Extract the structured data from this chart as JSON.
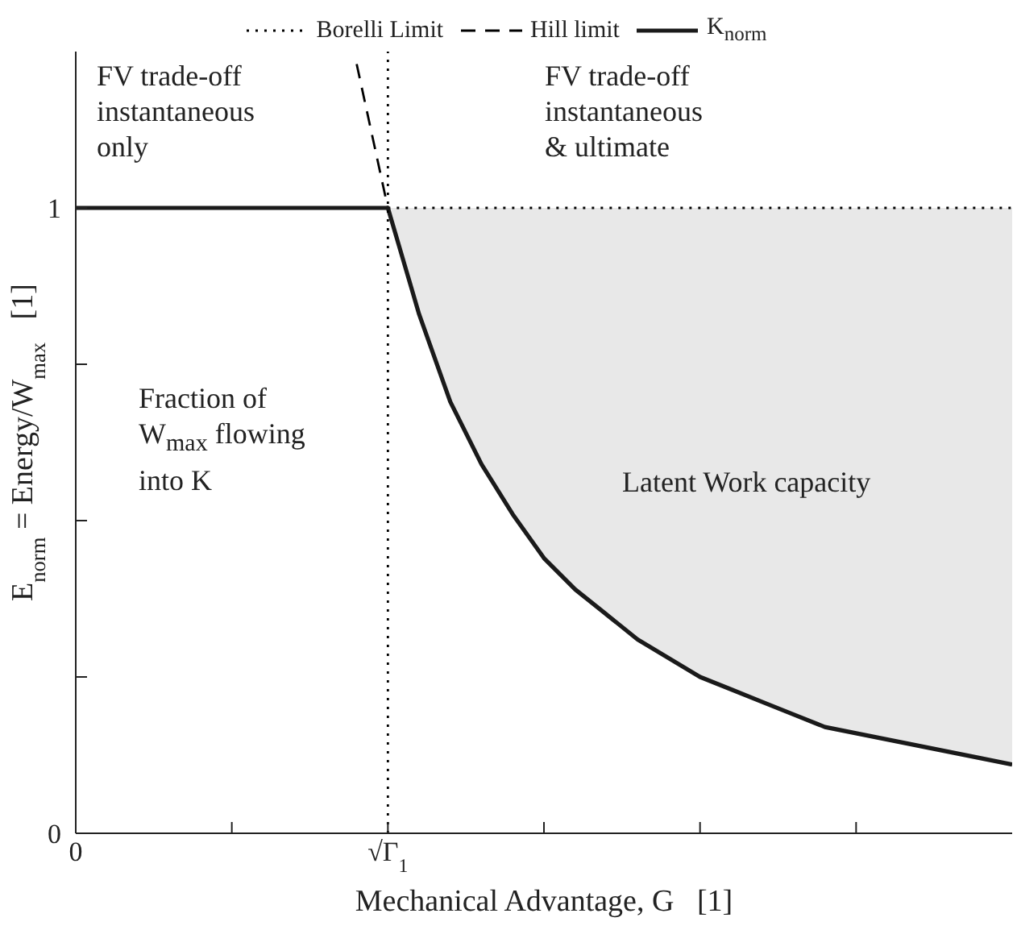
{
  "chart_data": {
    "type": "line",
    "xlabel": "Mechanical Advantage, G   [1]",
    "ylabel": "E$_{norm}$ = Energy/W$_{max}$   [1]",
    "categories": [
      "0",
      null,
      null,
      null,
      null,
      null,
      null,
      null,
      null,
      null,
      "√Γ$_{1}$",
      null,
      null,
      null,
      null,
      null,
      null,
      null,
      null,
      null,
      null,
      null,
      null,
      null,
      null,
      null,
      null,
      null,
      null,
      null,
      null
    ],
    "ylim": [
      0,
      1.25
    ],
    "yticks": [
      0,
      {
        "value": 0.25,
        "label": null
      },
      {
        "value": 0.5,
        "label": null
      },
      {
        "value": 0.75,
        "label": null
      },
      1
    ],
    "grid": false,
    "legend": "top",
    "marker": "none",
    "ref_lines": [
      {
        "axis": "x",
        "value": "√Γ$_{1}$",
        "line_style": "dotted",
        "color": "#000000"
      }
    ],
    "series": [
      {
        "name": "Borelli Limit",
        "color": "#000000",
        "line_style": "dotted",
        "values": [
          null,
          null,
          null,
          null,
          null,
          null,
          null,
          null,
          null,
          null,
          1,
          1,
          1,
          1,
          1,
          1,
          1,
          1,
          1,
          1,
          1,
          1,
          1,
          1,
          1,
          1,
          1,
          1,
          1,
          1,
          1
        ]
      },
      {
        "name": "Hill limit",
        "color": "#000000",
        "line_style": "dashed",
        "values": [
          null,
          null,
          null,
          null,
          null,
          null,
          null,
          null,
          null,
          1.23,
          1,
          null,
          null,
          null,
          null,
          null,
          null,
          null,
          null,
          null,
          null,
          null,
          null,
          null,
          null,
          null,
          null,
          null,
          null,
          null,
          null
        ]
      },
      {
        "name": "K$_{norm}$",
        "color": "#1a1a1a",
        "line_style": "solid",
        "values": [
          1,
          1,
          1,
          1,
          1,
          1,
          1,
          1,
          1,
          1,
          1,
          0.83,
          0.69,
          0.59,
          0.51,
          0.44,
          0.39,
          0.35,
          0.31,
          0.28,
          0.25,
          0.23,
          0.21,
          0.19,
          0.17,
          0.16,
          0.15,
          0.14,
          0.13,
          0.12,
          0.11
        ],
        "lower": [
          null,
          null,
          null,
          null,
          null,
          null,
          null,
          null,
          null,
          null,
          1,
          0.83,
          0.69,
          0.59,
          0.51,
          0.44,
          0.39,
          0.35,
          0.31,
          0.28,
          0.25,
          0.23,
          0.21,
          0.19,
          0.17,
          0.16,
          0.15,
          0.14,
          0.13,
          0.12,
          0.11
        ],
        "upper": [
          null,
          null,
          null,
          null,
          null,
          null,
          null,
          null,
          null,
          null,
          1,
          1,
          1,
          1,
          1,
          1,
          1,
          1,
          1,
          1,
          1,
          1,
          1,
          1,
          1,
          1,
          1,
          1,
          1,
          1,
          1
        ]
      }
    ],
    "annotations": [
      "FV trade-off\ninstantaneous\nonly",
      "FV trade-off\ninstantaneous\n& ultimate",
      "Fraction of\nW$_{max}$ flowing\ninto K",
      "Latent Work capacity"
    ]
  }
}
